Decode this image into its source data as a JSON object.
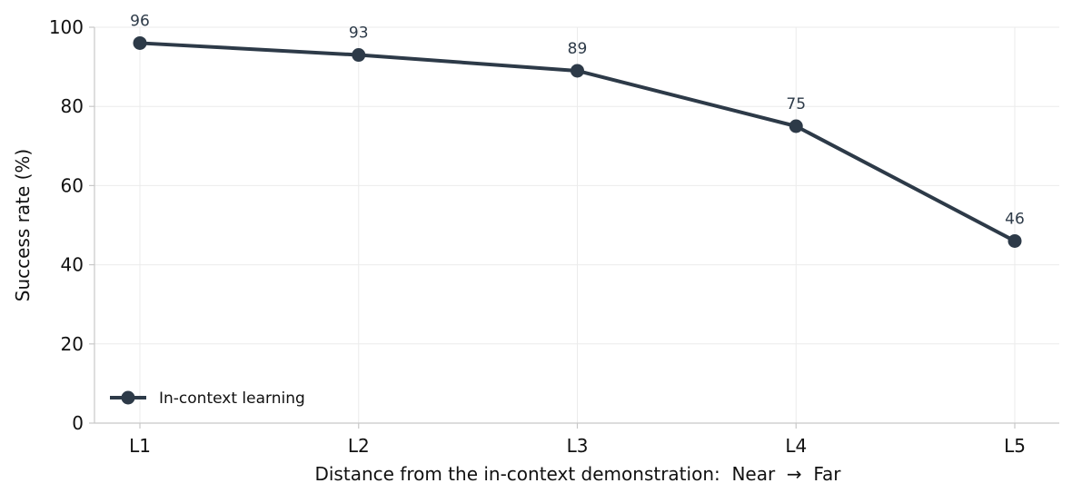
{
  "chart_data": {
    "type": "line",
    "title": "",
    "xlabel": "Distance from the in-context demonstration:  Near  →  Far",
    "ylabel": "Success rate (%)",
    "categories": [
      "L1",
      "L2",
      "L3",
      "L4",
      "L5"
    ],
    "series": [
      {
        "name": "In-context learning",
        "values": [
          96,
          93,
          89,
          75,
          46
        ],
        "color": "#2d3a48"
      }
    ],
    "data_labels": [
      "96",
      "93",
      "89",
      "75",
      "46"
    ],
    "ylim": [
      0,
      100
    ],
    "yticks": [
      0,
      20,
      40,
      60,
      80,
      100
    ],
    "grid": true,
    "legend": "lower-left",
    "colors": {
      "series": "#2d3a48",
      "grid": "#ebebeb",
      "axis": "#c8c8c8",
      "text": "#111111",
      "data_label": "#2d3a48"
    }
  }
}
